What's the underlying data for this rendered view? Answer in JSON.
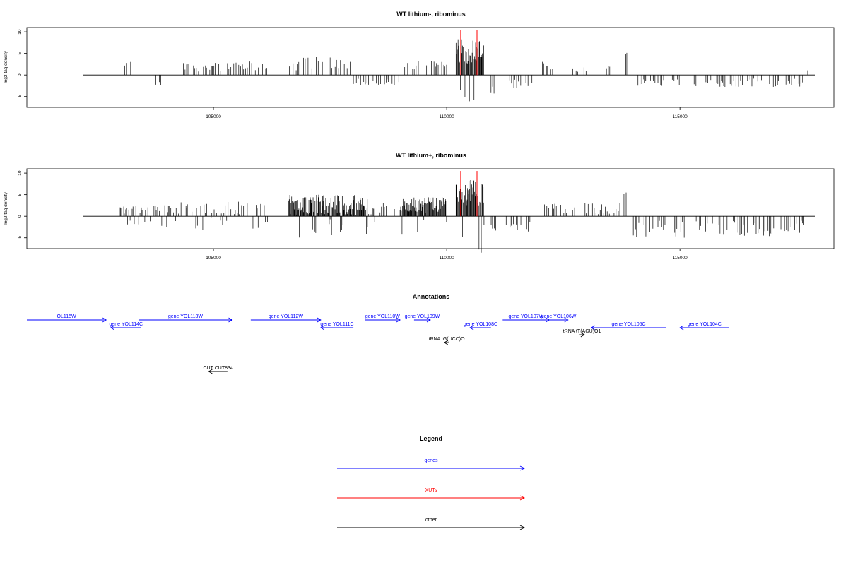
{
  "chart_data": [
    {
      "type": "bar",
      "title": "WT lithium-, ribominus",
      "ylabel": "log2 tag density",
      "xlim": [
        101000,
        118300
      ],
      "ylim": [
        -7.5,
        11
      ],
      "xticks": [
        105000,
        110000,
        115000
      ],
      "yticks": [
        -5,
        0,
        5,
        10
      ],
      "xut_lines": [
        110300,
        110650
      ],
      "segments": [
        {
          "x0": 103100,
          "x1": 103300,
          "kind": "pos",
          "mean": 2.5,
          "amp": 0.8
        },
        {
          "x0": 103700,
          "x1": 103950,
          "kind": "neg",
          "mean": 1.8,
          "amp": 0.6
        },
        {
          "x0": 104300,
          "x1": 105200,
          "kind": "pos",
          "mean": 1.8,
          "amp": 1.0
        },
        {
          "x0": 105300,
          "x1": 106200,
          "kind": "pos",
          "mean": 2.0,
          "amp": 1.2
        },
        {
          "x0": 106600,
          "x1": 108000,
          "kind": "pos",
          "mean": 2.6,
          "amp": 1.6
        },
        {
          "x0": 108000,
          "x1": 109000,
          "kind": "neg",
          "mean": 1.8,
          "amp": 1.0
        },
        {
          "x0": 109100,
          "x1": 110000,
          "kind": "pos",
          "mean": 2.4,
          "amp": 1.2
        },
        {
          "x0": 110200,
          "x1": 110800,
          "kind": "dense",
          "mean": 5.5,
          "amp": 3.0
        },
        {
          "x0": 110950,
          "x1": 111050,
          "kind": "neg",
          "mean": 3.5,
          "amp": 0.8
        },
        {
          "x0": 111350,
          "x1": 111900,
          "kind": "neg",
          "mean": 2.0,
          "amp": 1.2
        },
        {
          "x0": 112050,
          "x1": 112300,
          "kind": "pos",
          "mean": 2.2,
          "amp": 1.0
        },
        {
          "x0": 112700,
          "x1": 113000,
          "kind": "pos",
          "mean": 1.2,
          "amp": 0.6
        },
        {
          "x0": 113400,
          "x1": 113500,
          "kind": "pos",
          "mean": 1.8,
          "amp": 0.6
        },
        {
          "x0": 113800,
          "x1": 113900,
          "kind": "pos",
          "mean": 5.0,
          "amp": 0.3
        },
        {
          "x0": 114100,
          "x1": 115000,
          "kind": "neg",
          "mean": 1.8,
          "amp": 0.8
        },
        {
          "x0": 115200,
          "x1": 117700,
          "kind": "neg",
          "mean": 1.8,
          "amp": 1.0
        },
        {
          "x0": 117700,
          "x1": 117750,
          "kind": "pos",
          "mean": 1.0,
          "amp": 0.2
        }
      ]
    },
    {
      "type": "bar",
      "title": "WT lithium+, ribominus",
      "ylabel": "log2 tag density",
      "xlim": [
        101000,
        118300
      ],
      "ylim": [
        -7.5,
        11
      ],
      "xticks": [
        105000,
        110000,
        115000
      ],
      "yticks": [
        -5,
        0,
        5,
        10
      ],
      "xut_lines": [
        110300,
        110650
      ],
      "segments": [
        {
          "x0": 103000,
          "x1": 104200,
          "kind": "mixed",
          "mean": 1.6,
          "amp": 1.0
        },
        {
          "x0": 104200,
          "x1": 106200,
          "kind": "mixed",
          "mean": 1.8,
          "amp": 1.6
        },
        {
          "x0": 106600,
          "x1": 108300,
          "kind": "dense",
          "mean": 2.6,
          "amp": 2.4
        },
        {
          "x0": 108300,
          "x1": 108900,
          "kind": "mixed",
          "mean": 1.8,
          "amp": 1.4
        },
        {
          "x0": 109000,
          "x1": 110000,
          "kind": "dense",
          "mean": 2.6,
          "amp": 1.8
        },
        {
          "x0": 110200,
          "x1": 110800,
          "kind": "dense",
          "mean": 5.5,
          "amp": 3.0
        },
        {
          "x0": 110800,
          "x1": 111900,
          "kind": "neg",
          "mean": 2.0,
          "amp": 1.6
        },
        {
          "x0": 112000,
          "x1": 113800,
          "kind": "pos",
          "mean": 1.8,
          "amp": 1.4
        },
        {
          "x0": 113800,
          "x1": 113900,
          "kind": "pos",
          "mean": 5.5,
          "amp": 0.3
        },
        {
          "x0": 114000,
          "x1": 115100,
          "kind": "neg",
          "mean": 3.0,
          "amp": 2.0
        },
        {
          "x0": 115300,
          "x1": 117700,
          "kind": "neg",
          "mean": 2.8,
          "amp": 1.8
        }
      ]
    }
  ],
  "annotations": {
    "title": "Annotations",
    "features": [
      {
        "label": "OL115W",
        "start": 101000,
        "end": 102700,
        "strand": "+",
        "row": 0,
        "color": "#0000ff"
      },
      {
        "label": "gene YOL114C",
        "start": 102800,
        "end": 103450,
        "strand": "-",
        "row": 1,
        "color": "#0000ff"
      },
      {
        "label": "gene YOL113W",
        "start": 103400,
        "end": 105400,
        "strand": "+",
        "row": 0,
        "color": "#0000ff"
      },
      {
        "label": "gene YOL112W",
        "start": 105800,
        "end": 107300,
        "strand": "+",
        "row": 0,
        "color": "#0000ff"
      },
      {
        "label": "gene YOL111C",
        "start": 107300,
        "end": 108000,
        "strand": "-",
        "row": 1,
        "color": "#0000ff"
      },
      {
        "label": "gene YOL110W",
        "start": 108250,
        "end": 109000,
        "strand": "+",
        "row": 0,
        "color": "#0000ff"
      },
      {
        "label": "gene YOL109W",
        "start": 109300,
        "end": 109650,
        "strand": "+",
        "row": 0,
        "color": "#0000ff"
      },
      {
        "label": "gene YOL108C",
        "start": 110500,
        "end": 110950,
        "strand": "-",
        "row": 1,
        "color": "#0000ff"
      },
      {
        "label": "gene YOL107W",
        "start": 111200,
        "end": 112200,
        "strand": "+",
        "row": 0,
        "color": "#0000ff"
      },
      {
        "label": "gene YOL106W",
        "start": 112200,
        "end": 112600,
        "strand": "+",
        "row": 0,
        "color": "#0000ff"
      },
      {
        "label": "gene YOL105C",
        "start": 113100,
        "end": 114700,
        "strand": "-",
        "row": 1,
        "color": "#0000ff"
      },
      {
        "label": "gene YOL104C",
        "start": 115000,
        "end": 116050,
        "strand": "-",
        "row": 1,
        "color": "#0000ff"
      },
      {
        "label": "tRNA tT(AGU)O1",
        "start": 112850,
        "end": 112950,
        "strand": "+",
        "row": 2,
        "color": "#000000"
      },
      {
        "label": "tRNA tG(UCC)O",
        "start": 109950,
        "end": 110050,
        "strand": "-",
        "row": 3,
        "color": "#000000"
      },
      {
        "label": "CUT CUT834",
        "start": 104900,
        "end": 105300,
        "strand": "-",
        "row": 5,
        "color": "#000000"
      }
    ]
  },
  "legend": {
    "title": "Legend",
    "items": [
      {
        "label": "genes",
        "color": "#0000ff"
      },
      {
        "label": "XUTs",
        "color": "#ff0000"
      },
      {
        "label": "other",
        "color": "#000000"
      }
    ]
  }
}
